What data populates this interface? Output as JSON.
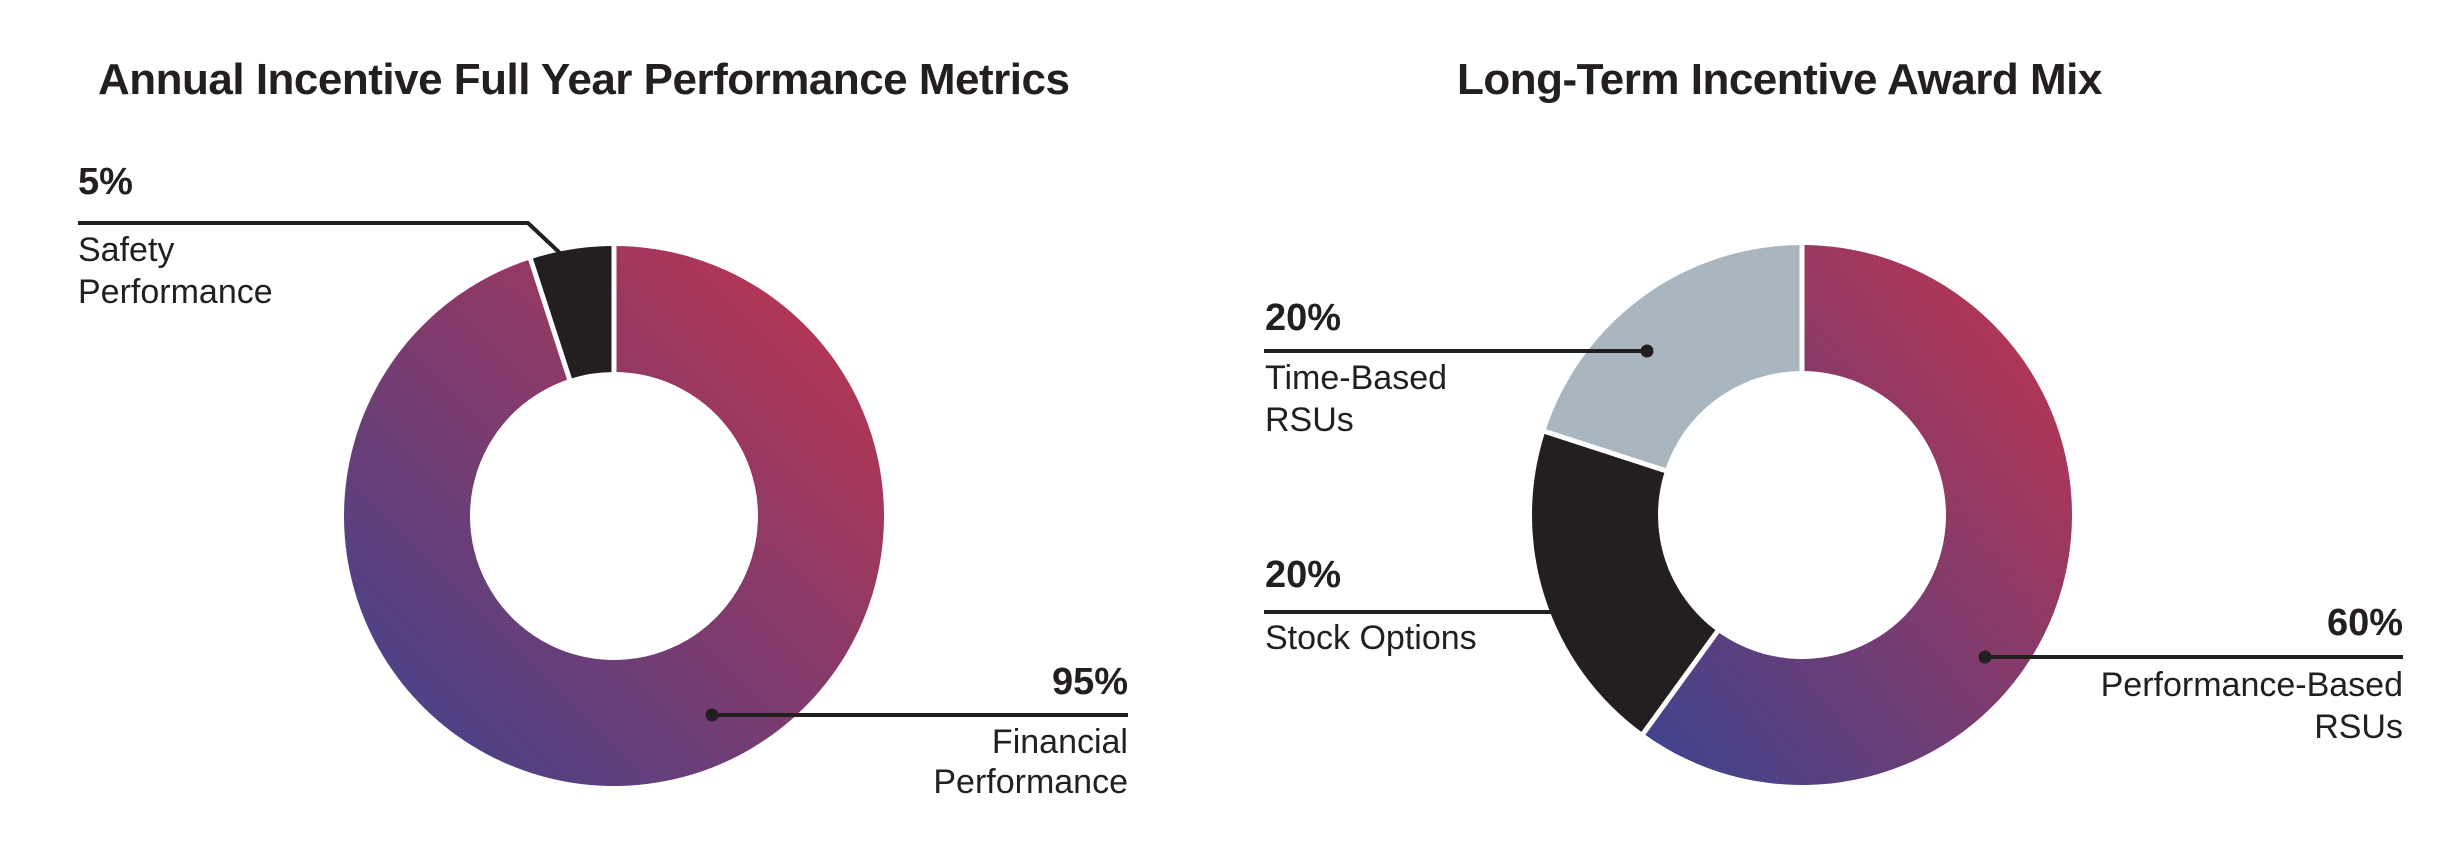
{
  "colors": {
    "background": "#FFFFFF",
    "text": "#231F20",
    "leader_line": "#231F20",
    "slice_red": "#C5334B",
    "slice_blue": "#3A448F",
    "slice_black": "#231F20",
    "slice_gray": "#A9B6BF",
    "slice_separator": "#FFFFFF"
  },
  "charts": [
    {
      "title": "Annual Incentive Full Year Performance Metrics",
      "callouts": [
        {
          "percent": "95%",
          "lines": [
            "Financial",
            "Performance"
          ]
        },
        {
          "percent": "5%",
          "lines": [
            "Safety",
            "Performance"
          ]
        }
      ]
    },
    {
      "title": "Long-Term Incentive Award Mix",
      "callouts": [
        {
          "percent": "60%",
          "lines": [
            "Performance-Based",
            "RSUs"
          ]
        },
        {
          "percent": "20%",
          "lines": [
            "Stock Options"
          ]
        },
        {
          "percent": "20%",
          "lines": [
            "Time-Based",
            "RSUs"
          ]
        }
      ]
    }
  ],
  "chart_data": [
    {
      "type": "pie",
      "donut": true,
      "title": "Annual Incentive Full Year Performance Metrics",
      "categories": [
        "Financial Performance",
        "Safety Performance"
      ],
      "values": [
        95,
        5
      ],
      "unit": "%",
      "data_labels": [
        "95%",
        "5%"
      ],
      "slice_fills": [
        "red-blue-gradient",
        "black"
      ],
      "start_angle_deg": 0,
      "direction": "clockwise",
      "inner_radius_ratio": 0.53,
      "legend_position": "none - direct leader-line callouts"
    },
    {
      "type": "pie",
      "donut": true,
      "title": "Long-Term Incentive Award Mix",
      "categories": [
        "Performance-Based RSUs",
        "Stock Options",
        "Time-Based RSUs"
      ],
      "values": [
        60,
        20,
        20
      ],
      "unit": "%",
      "data_labels": [
        "60%",
        "20%",
        "20%"
      ],
      "slice_fills": [
        "red-blue-gradient",
        "black",
        "gray"
      ],
      "start_angle_deg": 0,
      "direction": "clockwise",
      "inner_radius_ratio": 0.53,
      "legend_position": "none - direct leader-line callouts"
    }
  ]
}
